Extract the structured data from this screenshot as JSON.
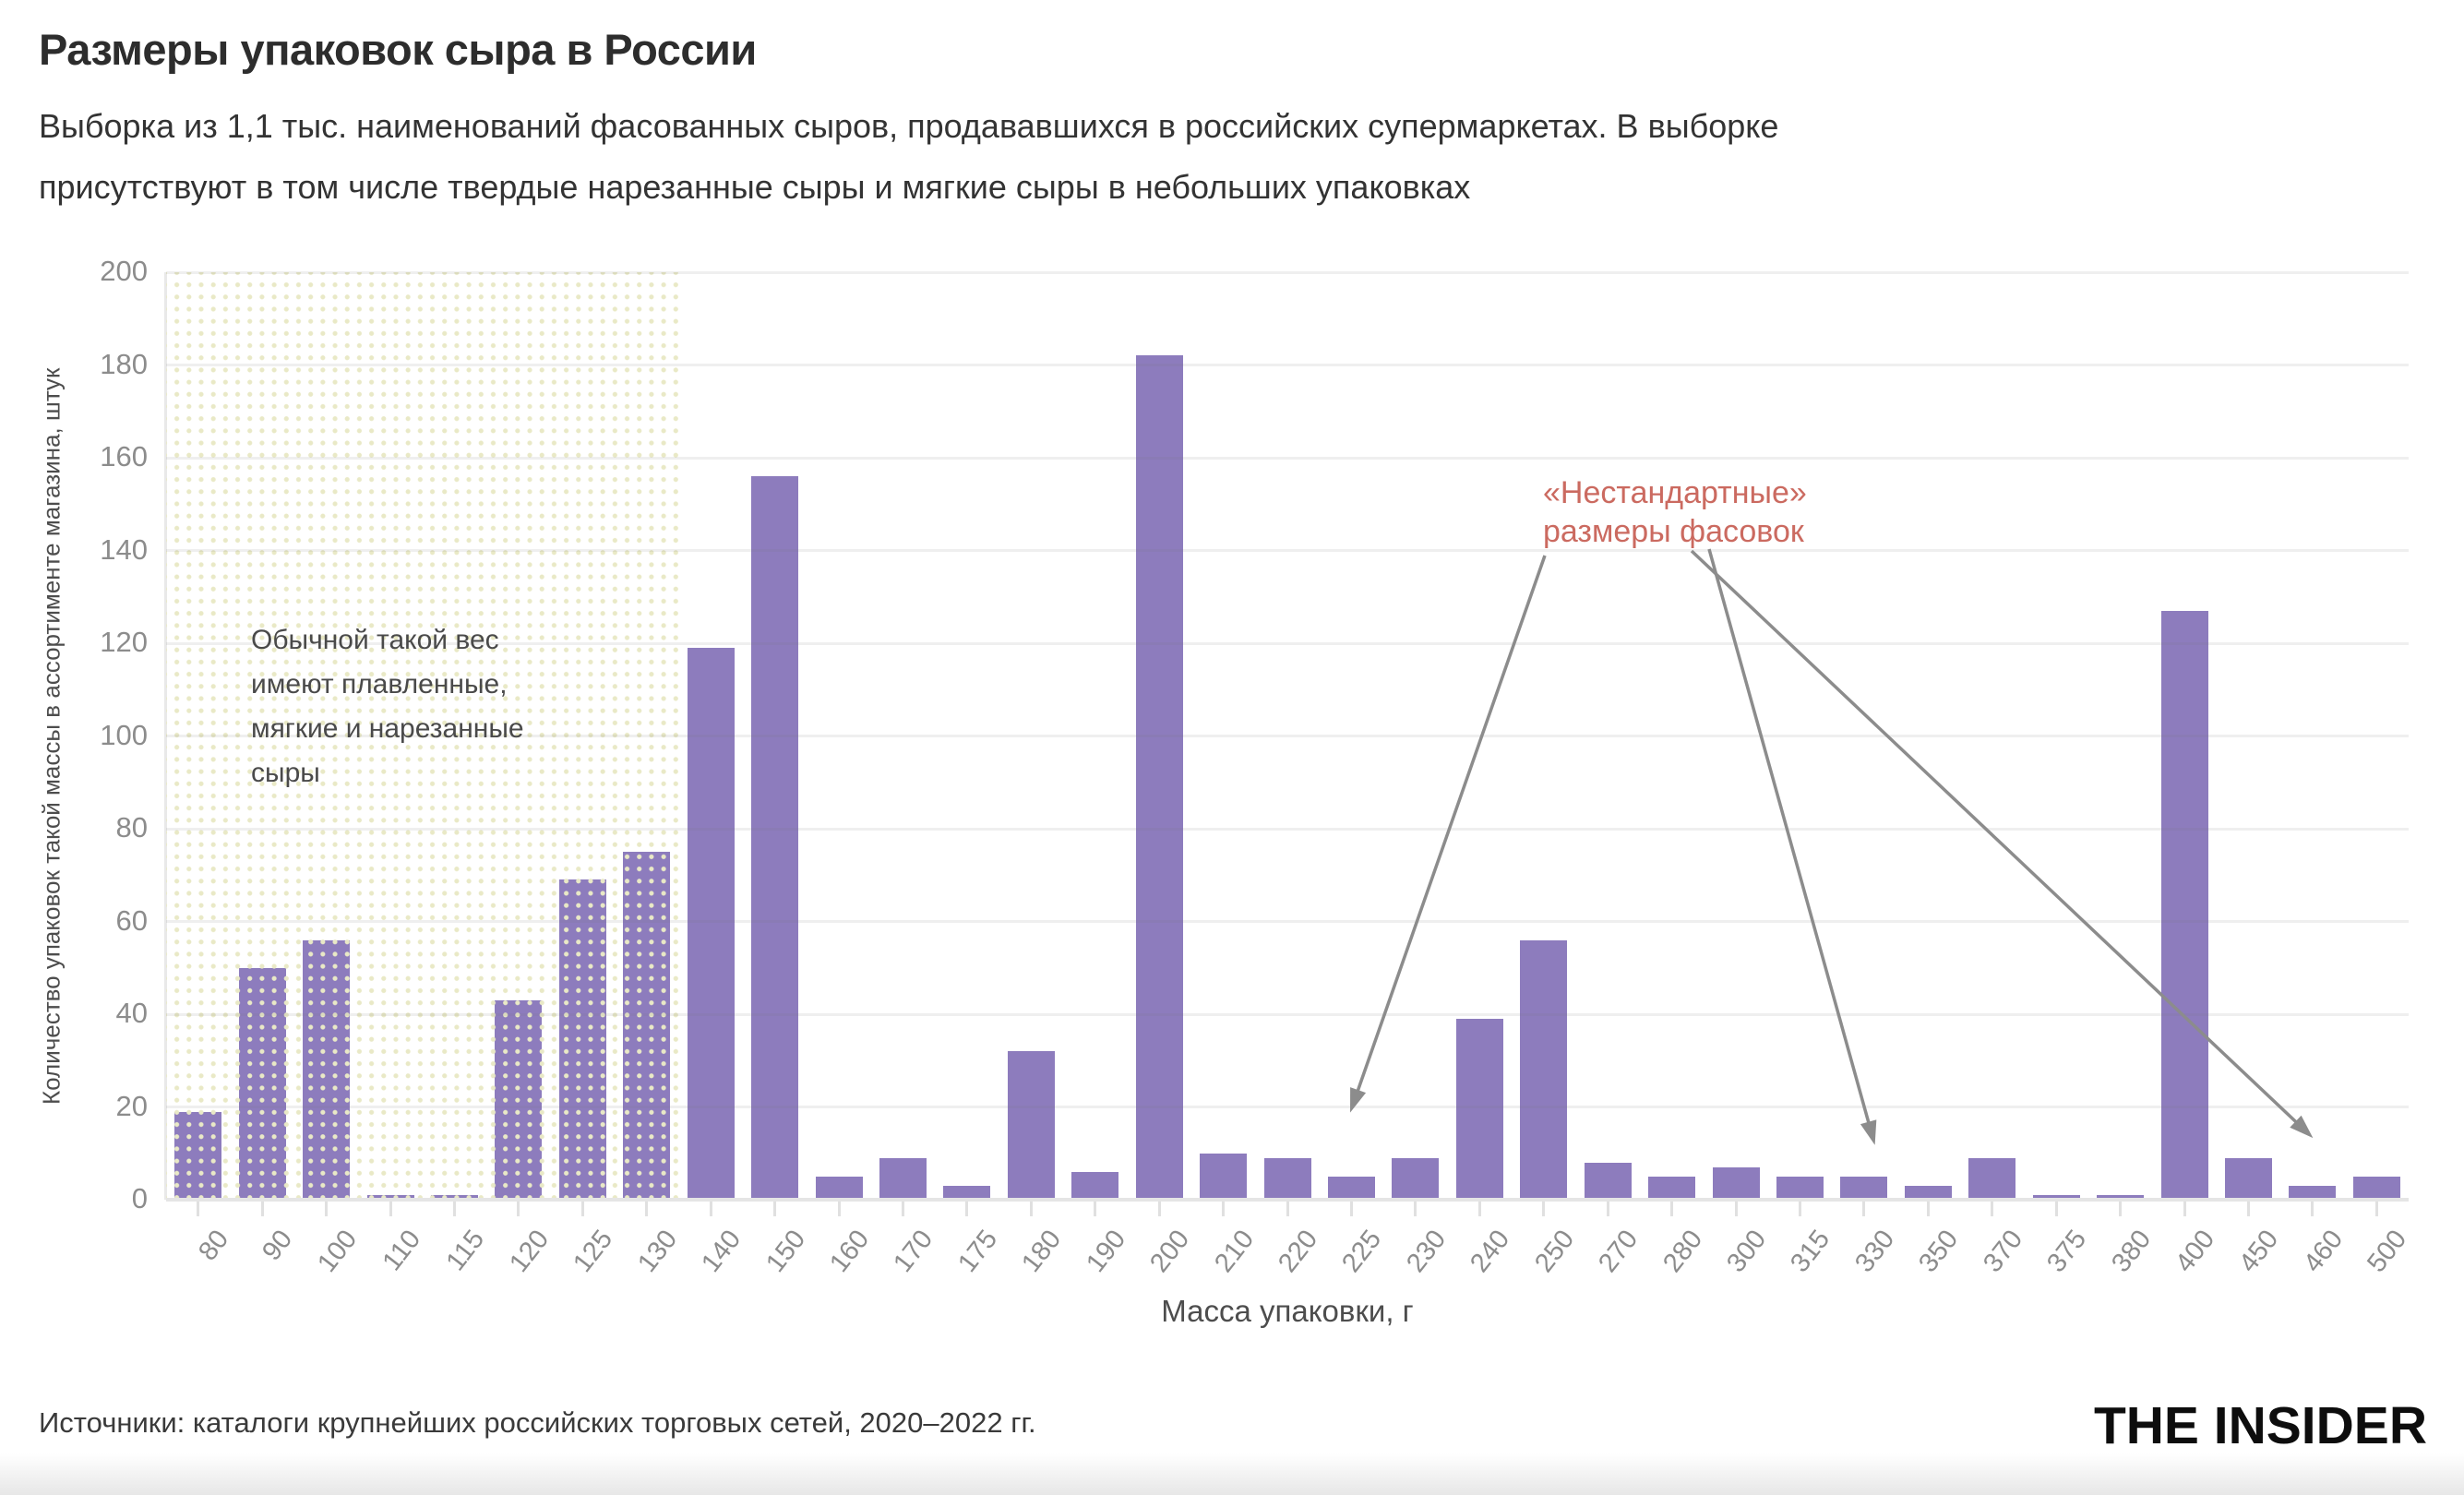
{
  "header": {
    "title": "Размеры упаковок сыра в России",
    "subtitle_lines": [
      "Выборка из 1,1 тыс. наименований фасованных сыров, продававшихся в российских супермаркетах. В выборке",
      "присутствуют в том числе твердые нарезанные сыры и мягкие сыры в небольших упаковках"
    ]
  },
  "chart_data": {
    "type": "bar",
    "title": "Размеры упаковок сыра в России",
    "xlabel": "Масса упаковки, г",
    "ylabel": "Количество упаковок такой массы в ассортименте магазина, штук",
    "categories": [
      "80",
      "90",
      "100",
      "110",
      "115",
      "120",
      "125",
      "130",
      "140",
      "150",
      "160",
      "170",
      "175",
      "180",
      "190",
      "200",
      "210",
      "220",
      "225",
      "230",
      "240",
      "250",
      "270",
      "280",
      "300",
      "315",
      "330",
      "350",
      "370",
      "375",
      "380",
      "400",
      "450",
      "460",
      "500"
    ],
    "values": [
      19,
      50,
      56,
      1,
      1,
      43,
      69,
      75,
      119,
      156,
      5,
      9,
      3,
      32,
      6,
      182,
      10,
      9,
      5,
      9,
      39,
      56,
      8,
      5,
      7,
      5,
      5,
      3,
      9,
      1,
      1,
      127,
      9,
      3,
      5
    ],
    "ylim": [
      0,
      200
    ],
    "ytick_step": 20,
    "grid": "horizontal",
    "legend": "none",
    "highlight_region_categories": [
      "80",
      "90",
      "100",
      "110",
      "115",
      "120",
      "125",
      "130"
    ]
  },
  "annotations": {
    "region_note_lines": [
      "Обычной такой вес",
      "имеют плавленные,",
      "мягкие и нарезанные",
      "сыры"
    ],
    "nonstandard_note_lines": [
      "«Нестандартные»",
      "размеры фасовок"
    ],
    "nonstandard_target_categories": [
      "225",
      "330",
      "460"
    ],
    "arrows": [
      {
        "from": [
          1494,
          307
        ],
        "to": [
          1285,
          905
        ]
      },
      {
        "from": [
          1672,
          300
        ],
        "to": [
          1850,
          940
        ]
      },
      {
        "from": [
          1653,
          302
        ],
        "to": [
          2322,
          934
        ]
      }
    ]
  },
  "footer": {
    "source": "Источники: каталоги крупнейших российских торговых сетей, 2020–2022 гг.",
    "logo": "THE INSIDER"
  },
  "colors": {
    "bar": "#8d7cbd",
    "region_dots": "#e9e9c6",
    "nonstandard_text": "#cb6a60",
    "arrow": "#8c8c8c",
    "tick_label": "#8c8c8c",
    "grid": "#ececec"
  }
}
